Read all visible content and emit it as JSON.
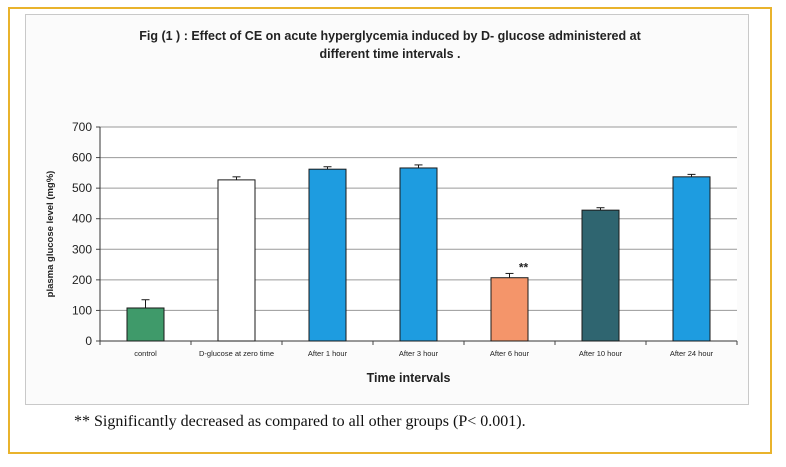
{
  "chart_data": {
    "type": "bar",
    "title_lines": [
      "Fig (1   ) : Effect of CE  on acute hyperglycemia induced by D- glucose administered at",
      "different time intervals   ."
    ],
    "xlabel": "Time intervals",
    "ylabel": "plasma glucose level (mg%)",
    "ylim": [
      0,
      700
    ],
    "yticks": [
      "0",
      "100",
      "200",
      "300",
      "400",
      "500",
      "600",
      "700"
    ],
    "ytick_values": [
      0,
      100,
      200,
      300,
      400,
      500,
      600,
      700
    ],
    "grid": true,
    "categories": [
      "control",
      "D-glucose at zero time",
      "After 1 hour",
      "After 3 hour",
      "After 6 hour",
      "After 10 hour",
      "After 24 hour"
    ],
    "values": [
      108,
      527,
      562,
      566,
      207,
      428,
      537
    ],
    "errors": [
      27,
      10,
      8,
      10,
      14,
      8,
      8
    ],
    "colors": [
      "#3f9a6a",
      "#ffffff",
      "#1e9ce0",
      "#1e9ce0",
      "#f4956a",
      "#2f6570",
      "#1e9ce0"
    ],
    "annotations": [
      {
        "category": "After 6 hour",
        "text": "**"
      }
    ]
  },
  "footnote": "** Significantly decreased as compared to all other groups (P< 0.001)."
}
